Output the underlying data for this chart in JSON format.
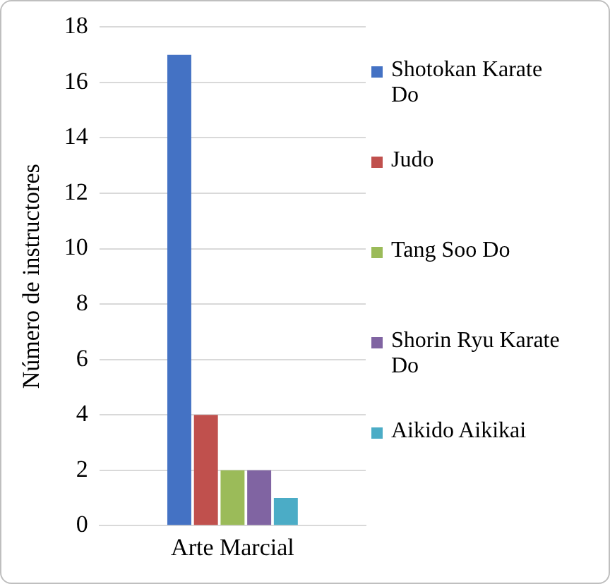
{
  "chart_data": {
    "type": "bar",
    "ylabel": "Número de instructores",
    "categories": [
      "Arte Marcial"
    ],
    "series": [
      {
        "name": "Shotokan Karate Do",
        "color": "#4472c4",
        "values": [
          17
        ]
      },
      {
        "name": "Judo",
        "color": "#c0504d",
        "values": [
          4
        ]
      },
      {
        "name": "Tang Soo Do",
        "color": "#9bbb59",
        "values": [
          2
        ]
      },
      {
        "name": "Shorin Ryu Karate Do",
        "color": "#8064a2",
        "values": [
          2
        ]
      },
      {
        "name": "Aikido Aikikai",
        "color": "#4bacc6",
        "values": [
          1
        ]
      }
    ],
    "ylim": [
      0,
      18
    ],
    "yticks": [
      0,
      2,
      4,
      6,
      8,
      10,
      12,
      14,
      16,
      18
    ],
    "grid": "y",
    "legend": "right"
  }
}
